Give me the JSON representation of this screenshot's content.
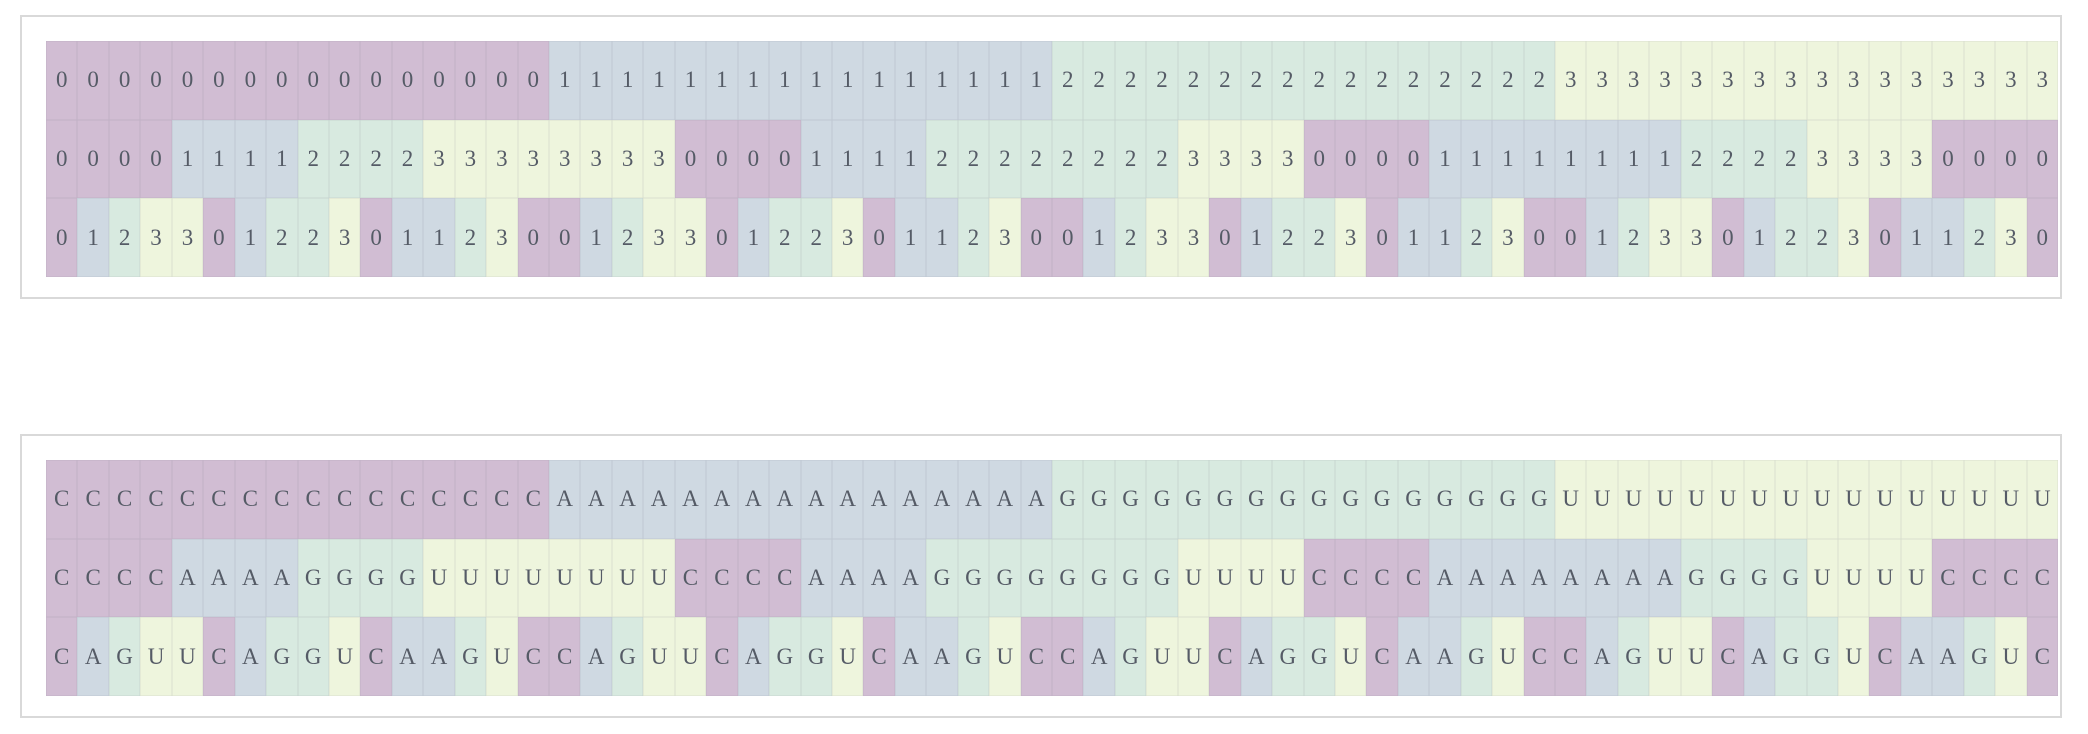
{
  "colors": {
    "0": "#d1bdd3",
    "1": "#cfd9e2",
    "2": "#d8eae0",
    "3": "#eef5dd"
  },
  "base_labels": [
    "C",
    "A",
    "G",
    "U"
  ],
  "digit_rows": [
    "0000000000000000111111111111111122222222222222223333333333333333",
    "0000111122223333333300001111222222223333000011111111222233330000",
    "0123301223011230012330122301123001233012230112300123301223011230"
  ],
  "base_rows": [
    "CCCCCCCCCCCCCCCCAAAAAAAAAAAAAAAAGGGGGGGGGGGGGGGGUUUUUUUUUUUUUUUU",
    "CCCCAAAAGGGGUUUUUUUUCCCCAAAAGGGGGGGGUUUUCCCCAAAAAAAAGGGGUUUUCCCC",
    "CAGUUCAGGUCAAGUCCAGUUCAGGUCAAGUCCAGUUCAGGUCAAGUCCAGUUCAGGUCAAGUC"
  ]
}
